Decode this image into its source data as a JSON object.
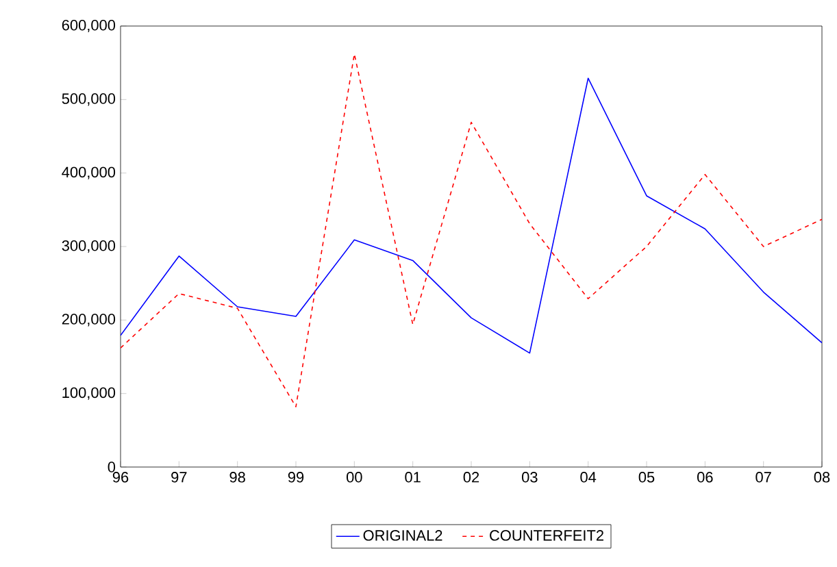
{
  "chart_data": {
    "type": "line",
    "categories": [
      "96",
      "97",
      "98",
      "99",
      "00",
      "01",
      "02",
      "03",
      "04",
      "05",
      "06",
      "07",
      "08"
    ],
    "series": [
      {
        "name": "ORIGINAL2",
        "color": "#0000ff",
        "line_style": "solid",
        "values": [
          179000,
          287000,
          218000,
          205000,
          309000,
          281000,
          203000,
          155000,
          529000,
          369000,
          324000,
          238000,
          169000
        ]
      },
      {
        "name": "COUNTERFEIT2",
        "color": "#ff0000",
        "line_style": "dashed",
        "values": [
          162000,
          236000,
          216000,
          82000,
          562000,
          194000,
          469000,
          331000,
          229000,
          300000,
          398000,
          300000,
          337000
        ]
      }
    ],
    "ylim": [
      0,
      600000
    ],
    "yticks": [
      {
        "value": 0,
        "label": "0"
      },
      {
        "value": 100000,
        "label": "100,000"
      },
      {
        "value": 200000,
        "label": "200,000"
      },
      {
        "value": 300000,
        "label": "300,000"
      },
      {
        "value": 400000,
        "label": "400,000"
      },
      {
        "value": 500000,
        "label": "500,000"
      },
      {
        "value": 600000,
        "label": "600,000"
      }
    ],
    "legend": "bottom",
    "marker": "none",
    "grid": false
  }
}
